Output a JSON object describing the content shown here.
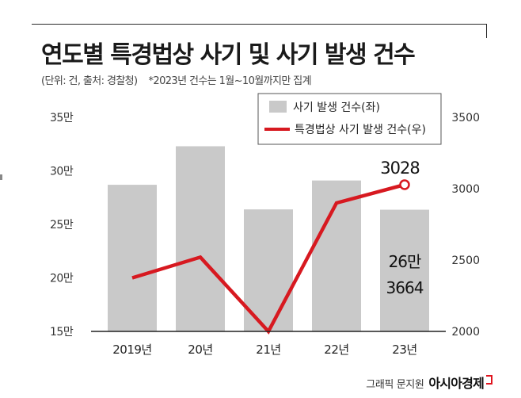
{
  "title": "연도별 특경법상 사기 및 사기 발생 건수",
  "subtitle": "(단위: 건, 출처: 경찰청)",
  "note": "*2023년 건수는 1월~10월까지만 집계",
  "credit": {
    "author": "그래픽 문지원",
    "publisher": "아시아경제"
  },
  "colors": {
    "bar": "#c9c9c9",
    "line": "#d71920",
    "text": "#1a1a1a"
  },
  "chart_data": {
    "type": "bar+line",
    "categories": [
      "2019년",
      "20년",
      "21년",
      "22년",
      "23년"
    ],
    "series": [
      {
        "name": "사기 발생 건수(좌)",
        "type": "bar",
        "axis": "left",
        "values": [
          287000,
          323000,
          264000,
          291000,
          263664
        ]
      },
      {
        "name": "특경법상 사기 발생 건수(우)",
        "type": "line",
        "axis": "right",
        "values": [
          2375,
          2520,
          2000,
          2900,
          3028
        ]
      }
    ],
    "left_axis": {
      "range": [
        150000,
        350000
      ],
      "ticks": [
        150000,
        200000,
        250000,
        300000,
        350000
      ],
      "tick_labels": [
        "15만",
        "20만",
        "25만",
        "30만",
        "35만"
      ]
    },
    "right_axis": {
      "range": [
        2000,
        3500
      ],
      "ticks": [
        2000,
        2500,
        3000,
        3500
      ],
      "tick_labels": [
        "2000",
        "2500",
        "3000",
        "3500"
      ]
    },
    "annotations": {
      "line_last": "3028",
      "bar_last_line1": "26만",
      "bar_last_line2": "3664"
    },
    "legend_placement": "top-right",
    "grid": false
  }
}
